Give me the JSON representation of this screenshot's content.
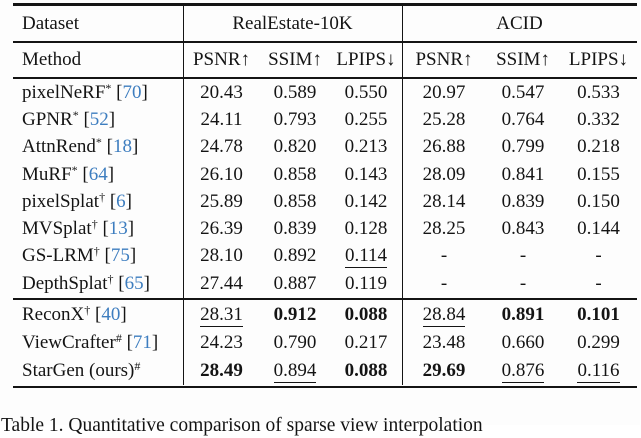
{
  "table": {
    "colors": {
      "citation_blue": "#3d7dbf",
      "text_black": "#141414"
    },
    "header": {
      "dataset_label": "Dataset",
      "method_label": "Method",
      "group1": "RealEstate-10K",
      "group2": "ACID",
      "metrics": [
        "PSNR↑",
        "SSIM↑",
        "LPIPS↓"
      ]
    },
    "rows_group1": [
      {
        "method": "pixelNeRF",
        "sup": "*",
        "cite": "70",
        "cells": [
          {
            "v": "20.43",
            "s": ""
          },
          {
            "v": "0.589",
            "s": ""
          },
          {
            "v": "0.550",
            "s": ""
          },
          {
            "v": "20.97",
            "s": ""
          },
          {
            "v": "0.547",
            "s": ""
          },
          {
            "v": "0.533",
            "s": ""
          }
        ]
      },
      {
        "method": "GPNR",
        "sup": "*",
        "cite": "52",
        "cells": [
          {
            "v": "24.11",
            "s": ""
          },
          {
            "v": "0.793",
            "s": ""
          },
          {
            "v": "0.255",
            "s": ""
          },
          {
            "v": "25.28",
            "s": ""
          },
          {
            "v": "0.764",
            "s": ""
          },
          {
            "v": "0.332",
            "s": ""
          }
        ]
      },
      {
        "method": "AttnRend",
        "sup": "*",
        "cite": "18",
        "cells": [
          {
            "v": "24.78",
            "s": ""
          },
          {
            "v": "0.820",
            "s": ""
          },
          {
            "v": "0.213",
            "s": ""
          },
          {
            "v": "26.88",
            "s": ""
          },
          {
            "v": "0.799",
            "s": ""
          },
          {
            "v": "0.218",
            "s": ""
          }
        ]
      },
      {
        "method": "MuRF",
        "sup": "*",
        "cite": "64",
        "cells": [
          {
            "v": "26.10",
            "s": ""
          },
          {
            "v": "0.858",
            "s": ""
          },
          {
            "v": "0.143",
            "s": ""
          },
          {
            "v": "28.09",
            "s": ""
          },
          {
            "v": "0.841",
            "s": ""
          },
          {
            "v": "0.155",
            "s": ""
          }
        ]
      },
      {
        "method": "pixelSplat",
        "sup": "†",
        "cite": "6",
        "cells": [
          {
            "v": "25.89",
            "s": ""
          },
          {
            "v": "0.858",
            "s": ""
          },
          {
            "v": "0.142",
            "s": ""
          },
          {
            "v": "28.14",
            "s": ""
          },
          {
            "v": "0.839",
            "s": ""
          },
          {
            "v": "0.150",
            "s": ""
          }
        ]
      },
      {
        "method": "MVSplat",
        "sup": "†",
        "cite": "13",
        "cells": [
          {
            "v": "26.39",
            "s": ""
          },
          {
            "v": "0.839",
            "s": ""
          },
          {
            "v": "0.128",
            "s": ""
          },
          {
            "v": "28.25",
            "s": ""
          },
          {
            "v": "0.843",
            "s": ""
          },
          {
            "v": "0.144",
            "s": ""
          }
        ]
      },
      {
        "method": "GS-LRM",
        "sup": "†",
        "cite": "75",
        "cells": [
          {
            "v": "28.10",
            "s": ""
          },
          {
            "v": "0.892",
            "s": ""
          },
          {
            "v": "0.114",
            "s": "u"
          },
          {
            "v": "-",
            "s": ""
          },
          {
            "v": "-",
            "s": ""
          },
          {
            "v": "-",
            "s": ""
          }
        ]
      },
      {
        "method": "DepthSplat",
        "sup": "†",
        "cite": "65",
        "cells": [
          {
            "v": "27.44",
            "s": ""
          },
          {
            "v": "0.887",
            "s": ""
          },
          {
            "v": "0.119",
            "s": ""
          },
          {
            "v": "-",
            "s": ""
          },
          {
            "v": "-",
            "s": ""
          },
          {
            "v": "-",
            "s": ""
          }
        ]
      }
    ],
    "rows_group2": [
      {
        "method": "ReconX",
        "sup": "†",
        "cite": "40",
        "cells": [
          {
            "v": "28.31",
            "s": "u"
          },
          {
            "v": "0.912",
            "s": "b"
          },
          {
            "v": "0.088",
            "s": "b"
          },
          {
            "v": "28.84",
            "s": "u"
          },
          {
            "v": "0.891",
            "s": "b"
          },
          {
            "v": "0.101",
            "s": "b"
          }
        ]
      },
      {
        "method": "ViewCrafter",
        "sup": "#",
        "cite": "71",
        "cells": [
          {
            "v": "24.23",
            "s": ""
          },
          {
            "v": "0.790",
            "s": ""
          },
          {
            "v": "0.217",
            "s": ""
          },
          {
            "v": "23.48",
            "s": ""
          },
          {
            "v": "0.660",
            "s": ""
          },
          {
            "v": "0.299",
            "s": ""
          }
        ]
      },
      {
        "method": "StarGen (ours)",
        "sup": "#",
        "cite": null,
        "cells": [
          {
            "v": "28.49",
            "s": "b"
          },
          {
            "v": "0.894",
            "s": "u"
          },
          {
            "v": "0.088",
            "s": "b"
          },
          {
            "v": "29.69",
            "s": "b"
          },
          {
            "v": "0.876",
            "s": "u"
          },
          {
            "v": "0.116",
            "s": "u"
          }
        ]
      }
    ],
    "caption": "Table 1.   Quantitative comparison of sparse view interpolation"
  }
}
